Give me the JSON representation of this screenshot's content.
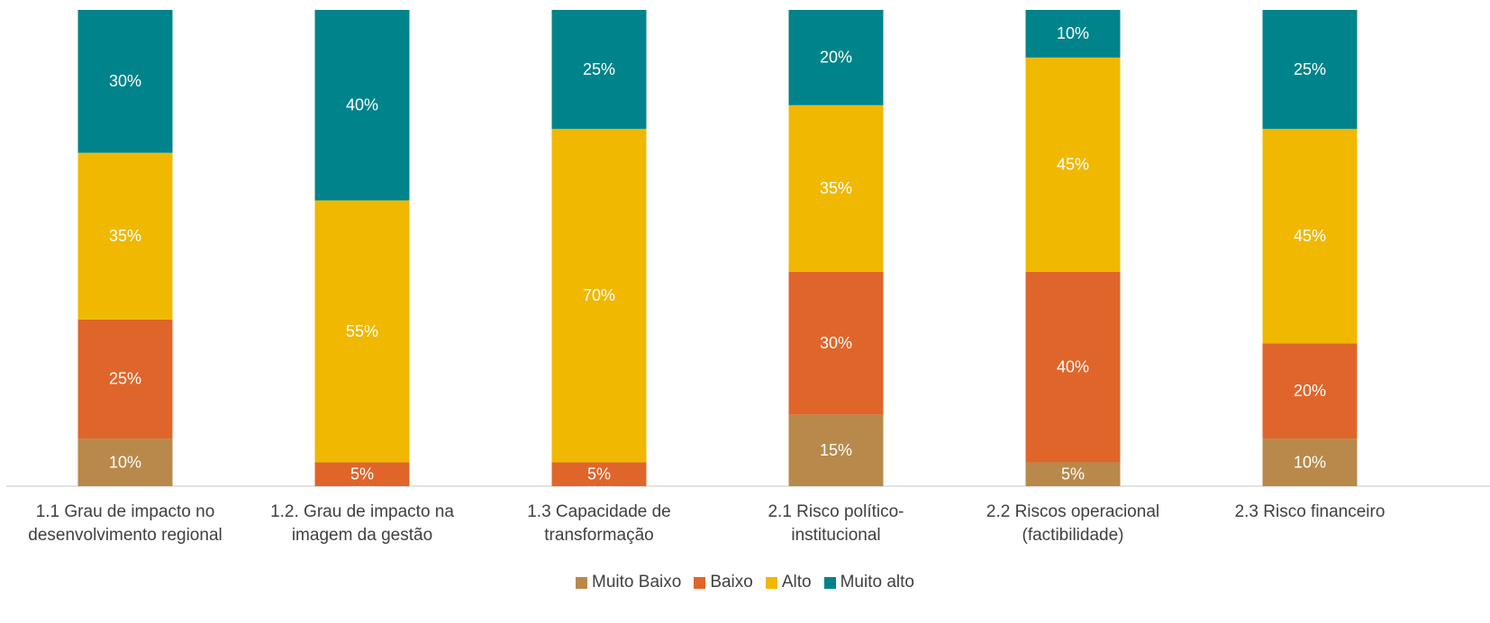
{
  "chart_data": {
    "type": "stacked_bar",
    "categories": [
      "1.1 Grau de impacto no desenvolvimento regional",
      "1.2. Grau de impacto na imagem da gestão",
      "1.3 Capacidade de transformação",
      "2.1 Risco político-institucional",
      "2.2 Riscos operacional (factibilidade)",
      "2.3 Risco financeiro"
    ],
    "series": [
      {
        "name": "Muito Baixo",
        "color": "#b8894a",
        "values": [
          10,
          0,
          0,
          15,
          5,
          10
        ],
        "value_labels": [
          "10%",
          "0%",
          "0%",
          "15%",
          "5%",
          "10%"
        ]
      },
      {
        "name": "Baixo",
        "color": "#e0652a",
        "values": [
          25,
          5,
          5,
          30,
          40,
          20
        ],
        "value_labels": [
          "25%",
          "5%",
          "5%",
          "30%",
          "40%",
          "20%"
        ]
      },
      {
        "name": "Alto",
        "color": "#f0b800",
        "values": [
          35,
          55,
          70,
          35,
          45,
          45
        ],
        "value_labels": [
          "35%",
          "55%",
          "70%",
          "35%",
          "45%",
          "45%"
        ]
      },
      {
        "name": "Muito alto",
        "color": "#00838a",
        "values": [
          30,
          40,
          25,
          20,
          10,
          25
        ],
        "value_labels": [
          "30%",
          "40%",
          "25%",
          "20%",
          "10%",
          "25%"
        ]
      }
    ],
    "legend": "bottom"
  }
}
